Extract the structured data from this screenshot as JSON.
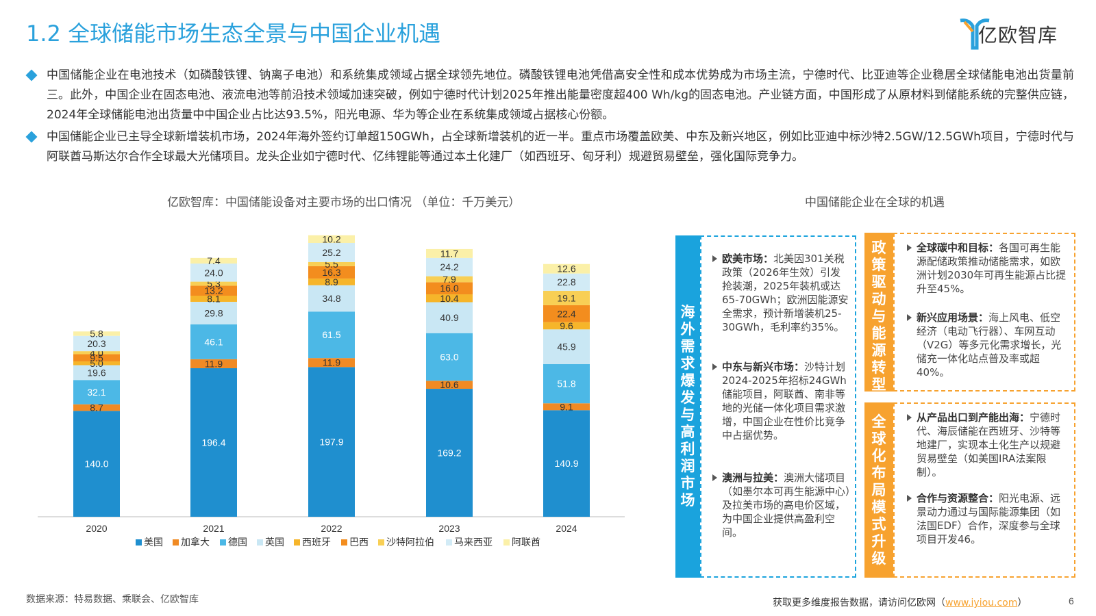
{
  "header": {
    "title": "1.2 全球储能市场生态全景与中国企业机遇",
    "logo_text": "亿欧智库"
  },
  "bullets": [
    "中国储能企业在电池技术（如磷酸铁锂、钠离子电池）和系统集成领域占据全球领先地位。磷酸铁锂电池凭借高安全性和成本优势成为市场主流，宁德时代、比亚迪等企业稳居全球储能电池出货量前三。此外，中国企业在固态电池、液流电池等前沿技术领域加速突破，例如宁德时代计划2025年推出能量密度超400 Wh/kg的固态电池。产业链方面，中国形成了从原材料到储能系统的完整供应链，2024年全球储能电池出货量中中国企业占比达93.5%，阳光电源、华为等企业在系统集成领域占据核心份额。",
    "中国储能企业已主导全球新增装机市场，2024年海外签约订单超150GWh，占全球新增装机的近一半。重点市场覆盖欧美、中东及新兴地区，例如比亚迪中标沙特2.5GW/12.5GWh项目，宁德时代与阿联酋马斯达尔合作全球最大光储项目。龙头企业如宁德时代、亿纬锂能等通过本土化建厂（如西班牙、匈牙利）规避贸易壁垒，强化国际竞争力。"
  ],
  "chart_title": "亿欧智库：中国储能设备对主要市场的出口情况 （单位：千万美元）",
  "chart_data": {
    "type": "bar",
    "stacked": true,
    "categories": [
      "2020",
      "2021",
      "2022",
      "2023",
      "2024"
    ],
    "series": [
      {
        "name": "美国",
        "color": "#1f8fcf",
        "values": [
          140.0,
          196.4,
          197.9,
          169.2,
          140.9
        ]
      },
      {
        "name": "加拿大",
        "color": "#f08a24",
        "values": [
          8.7,
          11.9,
          11.9,
          10.6,
          9.1
        ]
      },
      {
        "name": "德国",
        "color": "#4cb8e6",
        "values": [
          32.1,
          46.1,
          61.5,
          63.0,
          51.8
        ]
      },
      {
        "name": "英国",
        "color": "#c9e7f4",
        "values": [
          19.6,
          29.8,
          34.8,
          40.9,
          45.9
        ]
      },
      {
        "name": "西班牙",
        "color": "#f6b52a",
        "values": [
          5.0,
          8.1,
          8.9,
          10.4,
          9.6
        ]
      },
      {
        "name": "巴西",
        "color": "#f38d1e",
        "values": [
          9.5,
          13.2,
          16.3,
          16.0,
          22.4
        ]
      },
      {
        "name": "沙特阿拉伯",
        "color": "#f8cf55",
        "values": [
          4.0,
          5.3,
          5.5,
          7.9,
          19.1
        ]
      },
      {
        "name": "马来西亚",
        "color": "#d2ebf6",
        "values": [
          20.3,
          24.0,
          25.2,
          24.2,
          22.8
        ]
      },
      {
        "name": "阿联酋",
        "color": "#fbf0a8",
        "values": [
          5.8,
          7.4,
          10.2,
          11.7,
          12.6
        ]
      }
    ],
    "ylim": [
      0,
      400
    ],
    "legend": "bottom",
    "grid": false
  },
  "right_title": "中国储能企业在全球的机遇",
  "panel_left": {
    "label": "海外需求爆发与高利润市场",
    "items": [
      {
        "head": "欧美市场：",
        "text": "北美因301关税政策（2026年生效）引发抢装潮，2025年装机或达65-70GWh；欧洲因能源安全需求，预计新增装机25-30GWh，毛利率约35%。"
      },
      {
        "head": "中东与新兴市场：",
        "text": "沙特计划2024-2025年招标24GWh储能项目，阿联酋、南非等地的光储一体化项目需求激增，中国企业在性价比竞争中占据优势。"
      },
      {
        "head": "澳洲与拉美：",
        "text": "澳洲大储项目（如墨尔本可再生能源中心）及拉美市场的高电价区域，为中国企业提供高盈利空间。"
      }
    ]
  },
  "panel_top_right": {
    "label": "政策驱动与能源转型",
    "items": [
      {
        "head": "全球碳中和目标：",
        "text": "各国可再生能源配储政策推动储能需求，如欧洲计划2030年可再生能源占比提升至45%。"
      },
      {
        "head": "新兴应用场景：",
        "text": "海上风电、低空经济（电动飞行器）、车网互动（V2G）等多元化需求增长，光储充一体化站点普及率或超40%。"
      }
    ]
  },
  "panel_bottom_right": {
    "label": "全球化布局模式升级",
    "items": [
      {
        "head": "从产品出口到产能出海：",
        "text": "宁德时代、海辰储能在西班牙、沙特等地建厂，实现本土化生产以规避贸易壁垒（如美国IRA法案限制）。"
      },
      {
        "head": "合作与资源整合：",
        "text": "阳光电源、远景动力通过与国际能源集团（如法国EDF）合作，深度参与全球项目开发46。"
      }
    ]
  },
  "footer": {
    "source": "数据来源：特易数据、乘联会、亿欧智库",
    "more_text": "获取更多维度报告数据，请访问亿欧网（",
    "link": "www.iyiou.com",
    "close": "）",
    "page": "6"
  }
}
